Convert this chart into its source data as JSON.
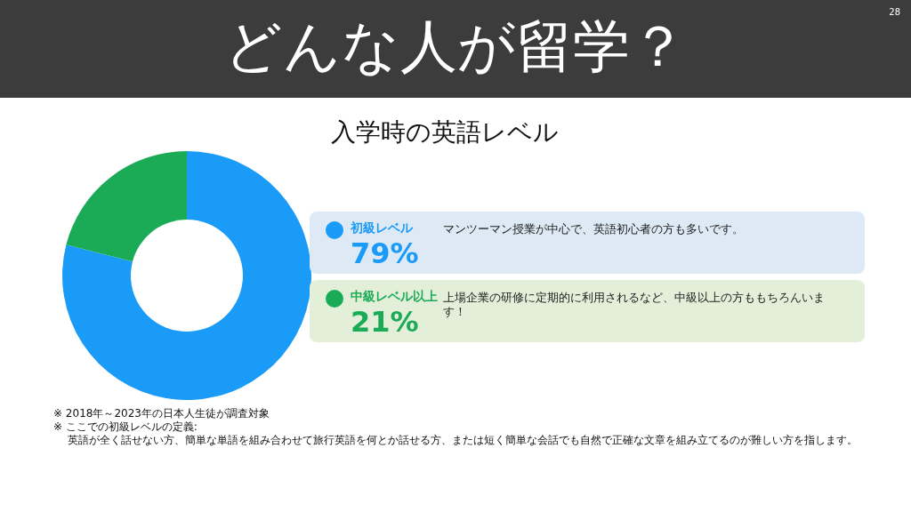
{
  "chart_data": {
    "type": "donut",
    "title": "どんな人が留学？",
    "subtitle": "入学時の英語レベル",
    "categories": [
      "初級レベル",
      "中級レベル以上"
    ],
    "values": [
      79,
      21
    ],
    "colors": [
      "#1a9bf7",
      "#1bab57"
    ],
    "value_labels": [
      "79%",
      "21%"
    ],
    "legend": "right",
    "annotations": [
      "28",
      "マンツーマン授業が中心で、英語初心者の方も多いです。",
      "上場企業の研修に定期的に利用されるなど、中級以上の方ももちろんいます！",
      "※ 2018年～2023年の日本人生徒が調査対象",
      "※ ここでの初級レベルの定義:",
      "英語が全く話せない方、簡単な単語を組み合わせて旅行英語を何とか話せる方、または短く簡単な会話でも自然で正確な文章を組み立てるのが難しい方を指します。"
    ]
  }
}
